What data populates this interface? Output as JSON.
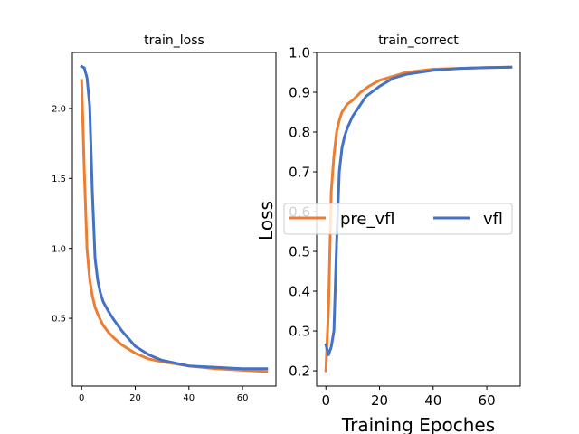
{
  "chart_data": [
    {
      "type": "line",
      "title": "train_loss",
      "xlabel": "",
      "ylabel": "",
      "xlim": [
        -3.45,
        72.45
      ],
      "ylim": [
        0.016,
        2.4
      ],
      "xticks": [
        0,
        20,
        40,
        60
      ],
      "yticks": [
        0.5,
        1.0,
        1.5,
        2.0
      ],
      "ytick_labels": [
        "0.5",
        "1.0",
        "1.5",
        "2.0"
      ],
      "grid": false,
      "series": [
        {
          "name": "pre_vfl",
          "color": "#ED7D31",
          "x": [
            0,
            1,
            2,
            3,
            4,
            5,
            6,
            7,
            8,
            10,
            12,
            15,
            20,
            25,
            30,
            40,
            50,
            60,
            69
          ],
          "y": [
            2.2,
            1.55,
            1.0,
            0.78,
            0.66,
            0.58,
            0.53,
            0.49,
            0.45,
            0.4,
            0.36,
            0.31,
            0.25,
            0.21,
            0.19,
            0.16,
            0.14,
            0.13,
            0.12
          ]
        },
        {
          "name": "vfl",
          "color": "#4472C4",
          "x": [
            0,
            1,
            2,
            3,
            4,
            5,
            6,
            7,
            8,
            10,
            12,
            15,
            20,
            25,
            30,
            40,
            50,
            60,
            69
          ],
          "y": [
            2.3,
            2.29,
            2.22,
            2.02,
            1.4,
            0.93,
            0.77,
            0.68,
            0.62,
            0.55,
            0.49,
            0.41,
            0.3,
            0.24,
            0.2,
            0.16,
            0.15,
            0.14,
            0.14
          ]
        }
      ]
    },
    {
      "type": "line",
      "title": "train_correct",
      "xlabel": "Training Epoches",
      "ylabel": "Loss",
      "xlim": [
        -3.45,
        72.45
      ],
      "ylim": [
        0.1615,
        1.0
      ],
      "xticks": [
        0,
        20,
        40,
        60
      ],
      "yticks": [
        0.2,
        0.3,
        0.4,
        0.5,
        0.6,
        0.7,
        0.8,
        0.9,
        1.0
      ],
      "ytick_labels": [
        "0.2",
        "0.3",
        "0.4",
        "0.5",
        "0.6",
        "0.7",
        "0.8",
        "0.9",
        "1.0"
      ],
      "grid": false,
      "legend": {
        "placement": "center-right",
        "entries": [
          "pre_vfl",
          "vfl"
        ]
      },
      "series": [
        {
          "name": "pre_vfl",
          "color": "#ED7D31",
          "x": [
            0,
            1,
            2,
            3,
            4,
            5,
            6,
            8,
            10,
            13,
            16,
            20,
            25,
            30,
            40,
            50,
            60,
            69
          ],
          "y": [
            0.2,
            0.36,
            0.65,
            0.74,
            0.8,
            0.83,
            0.85,
            0.87,
            0.88,
            0.9,
            0.915,
            0.93,
            0.94,
            0.95,
            0.958,
            0.96,
            0.962,
            0.963
          ]
        },
        {
          "name": "vfl",
          "color": "#4472C4",
          "x": [
            0,
            1,
            2,
            3,
            4,
            5,
            6,
            7,
            8,
            10,
            12,
            15,
            20,
            25,
            30,
            40,
            50,
            60,
            69
          ],
          "y": [
            0.265,
            0.24,
            0.26,
            0.3,
            0.52,
            0.7,
            0.76,
            0.79,
            0.81,
            0.84,
            0.86,
            0.89,
            0.915,
            0.935,
            0.945,
            0.955,
            0.96,
            0.962,
            0.963
          ]
        }
      ]
    }
  ]
}
